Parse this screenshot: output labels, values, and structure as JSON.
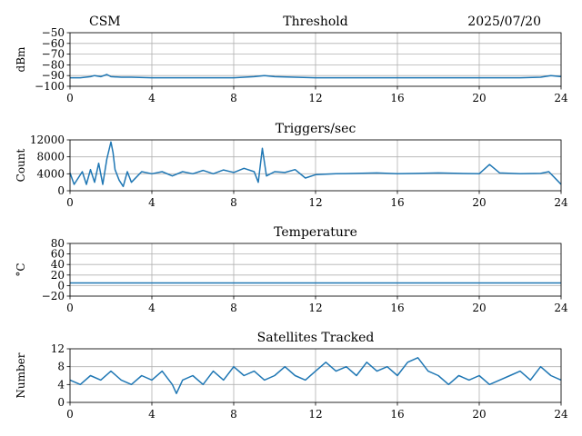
{
  "header": {
    "left": "CSM",
    "right": "2025/07/20"
  },
  "x_ticks": [
    "0",
    "4",
    "8",
    "12",
    "16",
    "20",
    "24"
  ],
  "series_color": "#1f77b4",
  "chart_data": [
    {
      "type": "line",
      "title": "Threshold",
      "ylabel": "dBm",
      "xlim": [
        0,
        24
      ],
      "ylim": [
        -100,
        -50
      ],
      "yticks": [
        "−50",
        "−60",
        "−70",
        "−80",
        "−90",
        "−100"
      ],
      "ytick_values": [
        -50,
        -60,
        -70,
        -80,
        -90,
        -100
      ],
      "grid": true,
      "x": [
        0,
        0.5,
        1,
        1.2,
        1.5,
        1.8,
        2,
        2.5,
        3,
        4,
        5,
        6,
        7,
        8,
        9,
        9.5,
        10,
        11,
        12,
        13,
        14,
        15,
        16,
        17,
        18,
        19,
        20,
        21,
        22,
        23,
        23.5,
        24
      ],
      "y": [
        -92,
        -92,
        -91,
        -90,
        -91,
        -89,
        -91,
        -91.5,
        -91.5,
        -92,
        -92,
        -92,
        -92,
        -92,
        -91,
        -90,
        -91,
        -91.5,
        -92,
        -92,
        -92,
        -92,
        -92,
        -92,
        -92,
        -92,
        -92,
        -92,
        -92,
        -91.5,
        -90,
        -91
      ]
    },
    {
      "type": "line",
      "title": "Triggers/sec",
      "ylabel": "Count",
      "xlim": [
        0,
        24
      ],
      "ylim": [
        0,
        12000
      ],
      "yticks": [
        "0",
        "4000",
        "8000",
        "12000"
      ],
      "ytick_values": [
        0,
        4000,
        8000,
        12000
      ],
      "grid": true,
      "x": [
        0,
        0.2,
        0.4,
        0.6,
        0.8,
        1,
        1.2,
        1.4,
        1.6,
        1.8,
        2,
        2.1,
        2.2,
        2.4,
        2.6,
        2.8,
        3,
        3.5,
        4,
        4.5,
        5,
        5.5,
        6,
        6.5,
        7,
        7.5,
        8,
        8.5,
        9,
        9.2,
        9.4,
        9.6,
        10,
        10.5,
        11,
        11.5,
        12,
        13,
        14,
        15,
        16,
        17,
        18,
        19,
        20,
        20.5,
        21,
        22,
        23,
        23.4,
        23.8,
        24
      ],
      "y": [
        4200,
        1500,
        3000,
        4500,
        1500,
        5000,
        2000,
        6500,
        1500,
        7500,
        11500,
        9000,
        5000,
        2500,
        1000,
        4500,
        2000,
        4500,
        4000,
        4500,
        3500,
        4500,
        4000,
        4800,
        4000,
        4900,
        4300,
        5300,
        4500,
        2000,
        10000,
        3500,
        4500,
        4300,
        5000,
        3000,
        3800,
        4000,
        4100,
        4200,
        4000,
        4100,
        4200,
        4100,
        4000,
        6200,
        4200,
        4000,
        4100,
        4500,
        2500,
        1500
      ]
    },
    {
      "type": "line",
      "title": "Temperature",
      "ylabel": "°C",
      "xlim": [
        0,
        24
      ],
      "ylim": [
        -20,
        80
      ],
      "yticks": [
        "80",
        "60",
        "40",
        "20",
        "0",
        "−20"
      ],
      "ytick_values": [
        80,
        60,
        40,
        20,
        0,
        -20
      ],
      "grid": true,
      "x": [
        0,
        24
      ],
      "y": [
        5,
        5
      ]
    },
    {
      "type": "line",
      "title": "Satellites Tracked",
      "ylabel": "Number",
      "xlim": [
        0,
        24
      ],
      "ylim": [
        0,
        12
      ],
      "yticks": [
        "0",
        "4",
        "8",
        "12"
      ],
      "ytick_values": [
        0,
        4,
        8,
        12
      ],
      "grid": true,
      "x": [
        0,
        0.5,
        1,
        1.5,
        2,
        2.5,
        3,
        3.5,
        4,
        4.5,
        5,
        5.2,
        5.5,
        6,
        6.5,
        7,
        7.5,
        8,
        8.5,
        9,
        9.5,
        10,
        10.5,
        11,
        11.5,
        12,
        12.5,
        13,
        13.5,
        14,
        14.5,
        15,
        15.5,
        16,
        16.5,
        17,
        17.5,
        18,
        18.5,
        19,
        19.5,
        20,
        20.5,
        21,
        21.5,
        22,
        22.5,
        23,
        23.5,
        24
      ],
      "y": [
        5,
        4,
        6,
        5,
        7,
        5,
        4,
        6,
        5,
        7,
        4,
        2,
        5,
        6,
        4,
        7,
        5,
        8,
        6,
        7,
        5,
        6,
        8,
        6,
        5,
        7,
        9,
        7,
        8,
        6,
        9,
        7,
        8,
        6,
        9,
        10,
        7,
        6,
        4,
        6,
        5,
        6,
        4,
        5,
        6,
        7,
        5,
        8,
        6,
        5
      ]
    }
  ]
}
